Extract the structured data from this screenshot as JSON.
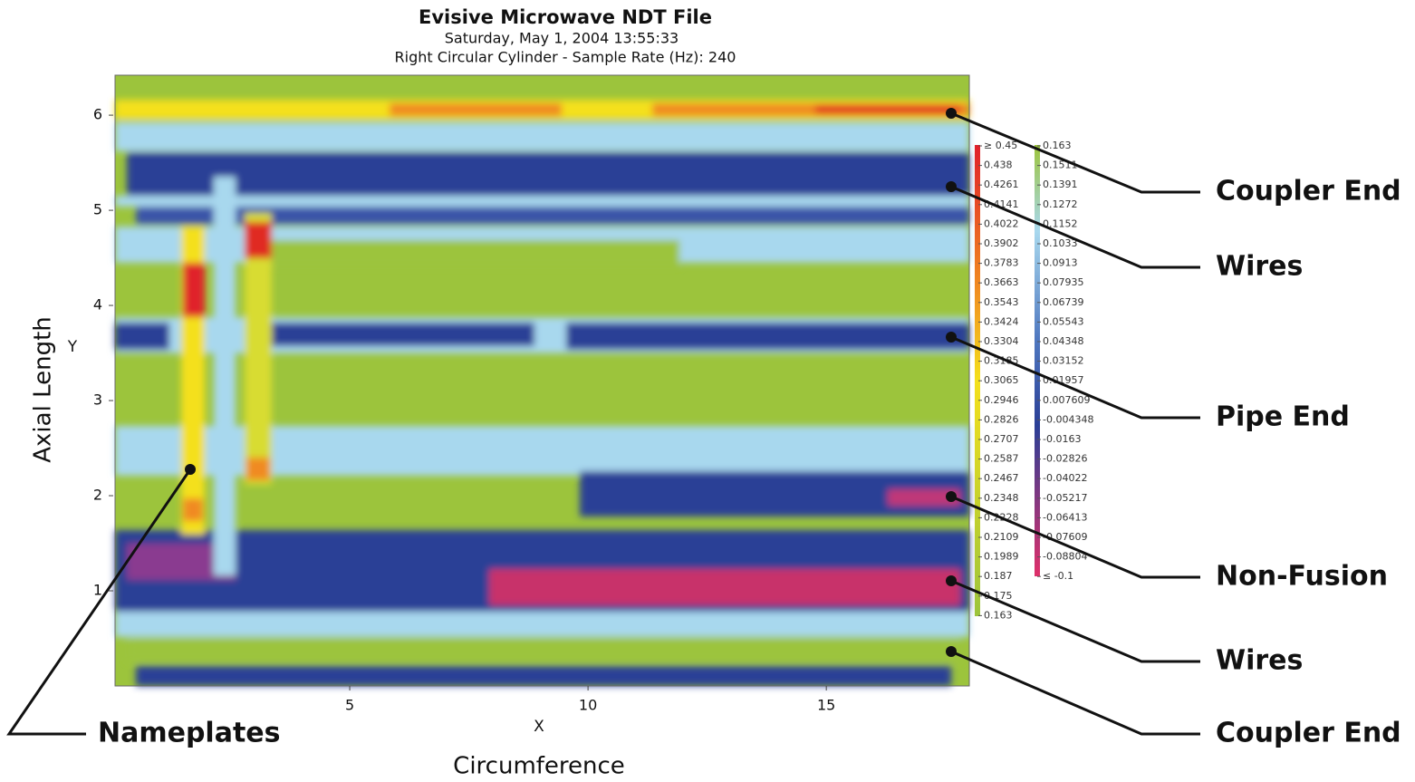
{
  "chart_data": {
    "type": "heatmap",
    "title": "Evisive Microwave NDT File",
    "subtitle": [
      "Saturday, May 1, 2004 13:55:33",
      "Right Circular Cylinder - Sample Rate (Hz): 240"
    ],
    "x_label": "Circumference",
    "x_axis_name": "X",
    "y_label": "Axial Length",
    "y_axis_name": "Y",
    "xlim": [
      0,
      18
    ],
    "xticks": [
      5,
      10,
      15
    ],
    "ylim": [
      0,
      6.42
    ],
    "yticks": [
      1,
      2,
      3,
      4,
      5,
      6
    ],
    "colorbar_high": [
      {
        "value": 0.45,
        "label": "≥ 0.45"
      },
      0.438,
      0.4261,
      0.4141,
      0.4022,
      0.3902,
      0.3783,
      0.3663,
      0.3543,
      0.3424,
      0.3304,
      0.3185,
      0.3065,
      0.2946,
      0.2826,
      0.2707,
      0.2587,
      0.2467,
      0.2348,
      0.2228,
      0.2109,
      0.1989,
      0.187,
      0.175,
      0.163
    ],
    "colorbar_low": [
      0.163,
      0.1511,
      0.1391,
      0.1272,
      0.1152,
      0.1033,
      0.0913,
      0.07935,
      0.06739,
      0.05543,
      0.04348,
      0.03152,
      0.01957,
      0.007609,
      -0.004348,
      -0.0163,
      -0.02826,
      -0.04022,
      -0.05217,
      -0.06413,
      -0.07609,
      -0.08804,
      {
        "value": -0.1,
        "label": "≤ -0.1"
      }
    ],
    "annotations": [
      "Coupler End",
      "Wires",
      "Pipe End",
      "Non-Fusion",
      "Wires",
      "Coupler End",
      "Nameplates"
    ]
  }
}
